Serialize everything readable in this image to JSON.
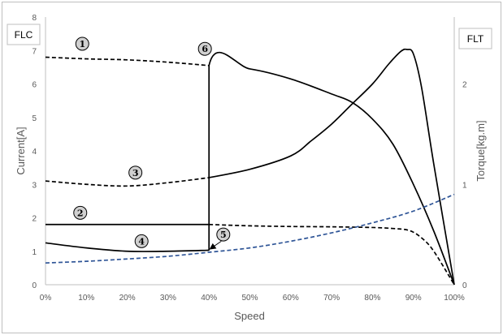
{
  "chart_data": {
    "type": "line",
    "title": "",
    "xlabel": "Speed",
    "ylabel_left": "Current[A]",
    "ylabel_right": "Torque[kg.m]",
    "left_box_label": "FLC",
    "right_box_label": "FLT",
    "xlim": [
      0,
      100
    ],
    "ylim_left": [
      0,
      8
    ],
    "ylim_right": [
      0,
      2.6667
    ],
    "x_ticks": [
      "0%",
      "10%",
      "20%",
      "30%",
      "40%",
      "50%",
      "60%",
      "70%",
      "80%",
      "90%",
      "100%"
    ],
    "x_tick_values": [
      0,
      10,
      20,
      30,
      40,
      50,
      60,
      70,
      80,
      90,
      100
    ],
    "y_left_ticks": [
      "0",
      "1",
      "2",
      "3",
      "4",
      "5",
      "6",
      "7",
      "8"
    ],
    "y_left_tick_values": [
      0,
      1,
      2,
      3,
      4,
      5,
      6,
      7,
      8
    ],
    "y_right_ticks": [
      "0",
      "1",
      "2"
    ],
    "y_right_tick_values": [
      0,
      1,
      2
    ],
    "grid": false,
    "series": [
      {
        "id": "c1",
        "axis": "left",
        "color": "#000000",
        "dash": true,
        "x": [
          0,
          10,
          20,
          30,
          40
        ],
        "y": [
          6.8,
          6.75,
          6.72,
          6.65,
          6.55
        ]
      },
      {
        "id": "c6",
        "axis": "left",
        "color": "#000000",
        "dash": false,
        "x": [
          40,
          40,
          50,
          60,
          70,
          75,
          80,
          85,
          90,
          95,
          100
        ],
        "y": [
          1.02,
          6.55,
          6.45,
          6.15,
          5.7,
          5.45,
          4.95,
          4.2,
          3.0,
          1.6,
          0.0
        ]
      },
      {
        "id": "c3",
        "axis": "left",
        "color": "#000000",
        "dash": true,
        "x": [
          0,
          10,
          20,
          30,
          40
        ],
        "y": [
          3.1,
          3.0,
          2.95,
          3.05,
          3.2
        ]
      },
      {
        "id": "c3s",
        "axis": "left",
        "color": "#000000",
        "dash": false,
        "x": [
          40,
          50,
          60,
          65,
          70,
          75,
          80,
          84,
          87,
          88.5,
          90,
          92,
          95,
          100
        ],
        "y": [
          3.2,
          3.45,
          3.85,
          4.3,
          4.8,
          5.4,
          6.0,
          6.6,
          6.98,
          7.03,
          6.9,
          5.9,
          3.6,
          0.0
        ]
      },
      {
        "id": "c2",
        "axis": "left",
        "color": "#000000",
        "dash": false,
        "x": [
          0,
          40
        ],
        "y": [
          1.8,
          1.8
        ]
      },
      {
        "id": "c2d",
        "axis": "left",
        "color": "#000000",
        "dash": true,
        "x": [
          40,
          50,
          60,
          70,
          80,
          85,
          89,
          92,
          95,
          100
        ],
        "y": [
          1.8,
          1.76,
          1.74,
          1.73,
          1.71,
          1.68,
          1.62,
          1.4,
          1.0,
          0.0
        ]
      },
      {
        "id": "c4",
        "axis": "left",
        "color": "#000000",
        "dash": false,
        "x": [
          0,
          10,
          20,
          30,
          40
        ],
        "y": [
          1.25,
          1.1,
          1.0,
          1.0,
          1.03
        ]
      },
      {
        "id": "load",
        "axis": "left",
        "color": "#2f5597",
        "dash": true,
        "x": [
          0,
          10,
          20,
          30,
          40,
          50,
          60,
          70,
          80,
          90,
          100
        ],
        "y": [
          0.65,
          0.7,
          0.77,
          0.85,
          0.97,
          1.1,
          1.3,
          1.55,
          1.85,
          2.2,
          2.7
        ]
      }
    ],
    "markers": [
      {
        "label": "1",
        "x": 9,
        "y": 7.2
      },
      {
        "label": "6",
        "x": 39,
        "y": 7.05
      },
      {
        "label": "3",
        "x": 22,
        "y": 3.35
      },
      {
        "label": "2",
        "x": 8.5,
        "y": 2.15
      },
      {
        "label": "4",
        "x": 23.5,
        "y": 1.3
      },
      {
        "label": "5",
        "x": 43.5,
        "y": 1.5
      }
    ],
    "arrow": {
      "from": {
        "x": 43,
        "y": 1.3
      },
      "to": {
        "x": 40,
        "y": 1.03
      }
    }
  }
}
